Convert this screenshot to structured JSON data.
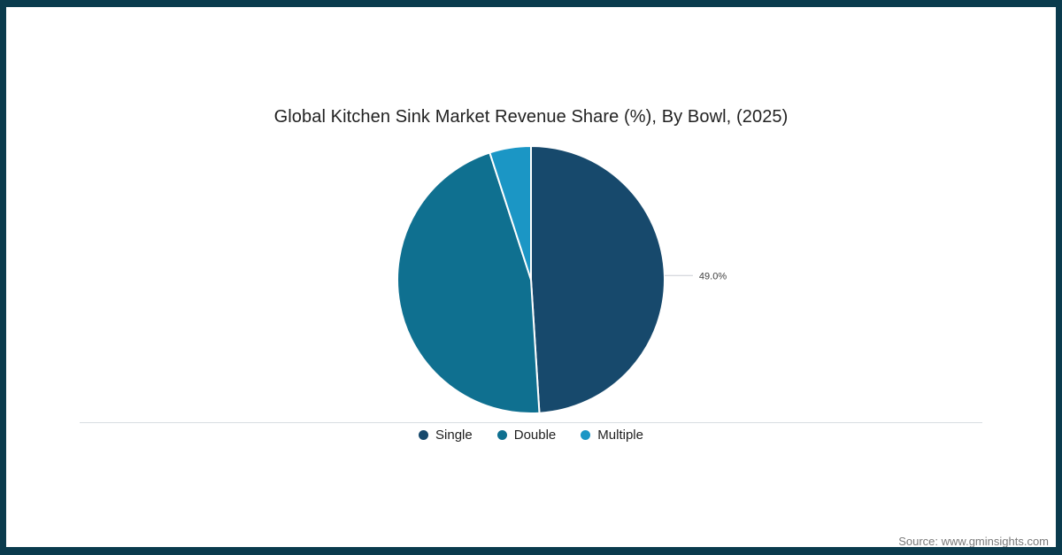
{
  "frame": {
    "border_color": "#0A3B4D",
    "background": "#FFFFFF"
  },
  "source": "Source: www.gminsights.com",
  "chart_data": {
    "type": "pie",
    "title": "Global Kitchen Sink Market Revenue Share (%), By Bowl, (2025)",
    "start_angle_deg": 0,
    "direction": "clockwise",
    "legend_position": "bottom",
    "slice_border_color": "#FFFFFF",
    "leader_line_color": "#c9ced3",
    "series": [
      {
        "name": "Single",
        "value": 49.0,
        "color": "#17496C",
        "callout_label": "49.0%"
      },
      {
        "name": "Double",
        "value": 46.0,
        "color": "#0F7090"
      },
      {
        "name": "Multiple",
        "value": 5.0,
        "color": "#1B96C5"
      }
    ]
  }
}
